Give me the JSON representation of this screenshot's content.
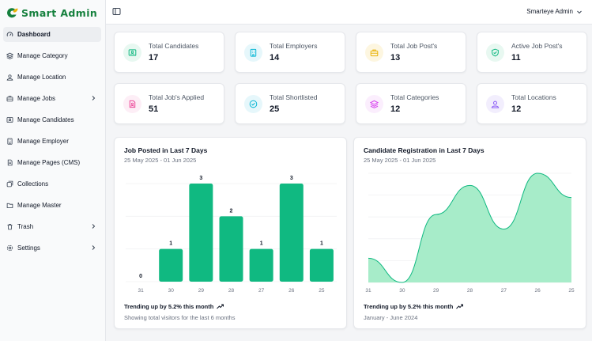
{
  "brand": {
    "name": "Smart Admin",
    "accent": "#15803d",
    "logo_icon": "leaf-logo-icon"
  },
  "sidebar": {
    "items": [
      {
        "label": "Dashboard",
        "icon": "gauge-icon",
        "active": true,
        "has_submenu": false
      },
      {
        "label": "Manage Category",
        "icon": "layers-icon",
        "active": false,
        "has_submenu": false
      },
      {
        "label": "Manage Location",
        "icon": "location-user-icon",
        "active": false,
        "has_submenu": false
      },
      {
        "label": "Manage Jobs",
        "icon": "briefcase-icon",
        "active": false,
        "has_submenu": true
      },
      {
        "label": "Manage Candidates",
        "icon": "id-card-icon",
        "active": false,
        "has_submenu": false
      },
      {
        "label": "Manage Employer",
        "icon": "building-icon",
        "active": false,
        "has_submenu": false
      },
      {
        "label": "Manage Pages (CMS)",
        "icon": "document-icon",
        "active": false,
        "has_submenu": false
      },
      {
        "label": "Collections",
        "icon": "collection-icon",
        "active": false,
        "has_submenu": false
      },
      {
        "label": "Manage Master",
        "icon": "folder-icon",
        "active": false,
        "has_submenu": false
      },
      {
        "label": "Trash",
        "icon": "trash-icon",
        "active": false,
        "has_submenu": true
      },
      {
        "label": "Settings",
        "icon": "gear-icon",
        "active": false,
        "has_submenu": true
      }
    ]
  },
  "header": {
    "user_name": "Smarteye Admin",
    "toggle_icon": "sidebar-toggle-icon"
  },
  "stats": [
    {
      "label": "Total Candidates",
      "value": "17",
      "icon": "id-card-icon",
      "color": "#10b981",
      "bg": "#e8f8f1"
    },
    {
      "label": "Total Employers",
      "value": "14",
      "icon": "building-icon",
      "color": "#06b6d4",
      "bg": "#e6f7fb"
    },
    {
      "label": "Total Job Post's",
      "value": "13",
      "icon": "briefcase-icon",
      "color": "#eab308",
      "bg": "#fdf6e0"
    },
    {
      "label": "Active Job Post's",
      "value": "11",
      "icon": "shield-check-icon",
      "color": "#10b981",
      "bg": "#e8f8f1"
    },
    {
      "label": "Total Job's Applied",
      "value": "51",
      "icon": "file-user-icon",
      "color": "#ec4899",
      "bg": "#fdeef6"
    },
    {
      "label": "Total Shortlisted",
      "value": "25",
      "icon": "check-circle-icon",
      "color": "#06b6d4",
      "bg": "#e6f7fb"
    },
    {
      "label": "Total Categories",
      "value": "12",
      "icon": "layers-icon",
      "color": "#d946ef",
      "bg": "#fbeefd"
    },
    {
      "label": "Total Locations",
      "value": "12",
      "icon": "location-user-icon",
      "color": "#8b5cf6",
      "bg": "#f2eefd"
    }
  ],
  "chart_data": [
    {
      "type": "bar",
      "title": "Job Posted in Last 7 Days",
      "subtitle": "25 May 2025 - 01 Jun 2025",
      "categories": [
        "31",
        "30",
        "29",
        "28",
        "27",
        "26",
        "25"
      ],
      "values": [
        0,
        1,
        3,
        2,
        1,
        3,
        1
      ],
      "ylim": [
        0,
        3
      ],
      "grid": true,
      "color": "#10b981",
      "footer_trend": "Trending up by 5.2% this month",
      "footer_note": "Showing total visitors for the last 6 months"
    },
    {
      "type": "area",
      "title": "Candidate Registration in Last 7 Days",
      "subtitle": "25 May 2025 - 01 Jun 2025",
      "categories": [
        "31",
        "30",
        "29",
        "28",
        "27",
        "26",
        "25"
      ],
      "values": [
        1,
        0,
        2.8,
        4,
        2.2,
        4.5,
        3.5
      ],
      "ylim": [
        0,
        4.5
      ],
      "grid": true,
      "color": "#10b981",
      "fill": "#a7ecc9",
      "footer_trend": "Trending up by 5.2% this month",
      "footer_note": "January - June 2024"
    }
  ]
}
